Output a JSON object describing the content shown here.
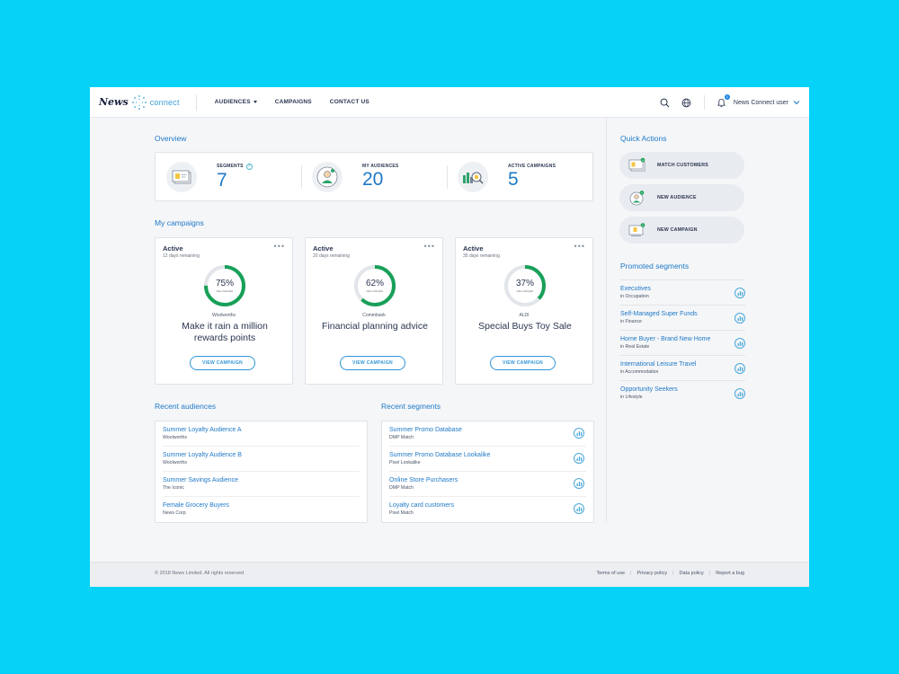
{
  "header": {
    "logo_news": "News",
    "logo_connect": "connect",
    "nav": [
      {
        "label": "AUDIENCES",
        "dropdown": true
      },
      {
        "label": "CAMPAIGNS",
        "dropdown": false
      },
      {
        "label": "CONTACT US",
        "dropdown": false
      }
    ],
    "notification_count": "1",
    "user_name": "News Connect user"
  },
  "overview": {
    "title": "Overview",
    "stats": [
      {
        "label": "SEGMENTS",
        "value": "7",
        "icon": "segments-icon"
      },
      {
        "label": "MY AUDIENCES",
        "value": "20",
        "icon": "audience-icon"
      },
      {
        "label": "ACTIVE CAMPAIGNS",
        "value": "5",
        "icon": "campaign-chart-icon"
      }
    ]
  },
  "campaigns": {
    "title": "My campaigns",
    "items": [
      {
        "status": "Active",
        "days": "12 days remaining",
        "percent": 75,
        "percent_label": "75%",
        "sub": "DELIVERED",
        "brand": "Woolworths",
        "name": "Make it rain a million rewards points",
        "button": "VIEW CAMPAIGN"
      },
      {
        "status": "Active",
        "days": "20 days remaining",
        "percent": 62,
        "percent_label": "62%",
        "sub": "DELIVERED",
        "brand": "Commbank",
        "name": "Financial planning advice",
        "button": "VIEW CAMPAIGN"
      },
      {
        "status": "Active",
        "days": "35 days remaining",
        "percent": 37,
        "percent_label": "37%",
        "sub": "DELIVERED",
        "brand": "ALDI",
        "name": "Special Buys Toy Sale",
        "button": "VIEW CAMPAIGN"
      }
    ]
  },
  "recent_audiences": {
    "title": "Recent audiences",
    "items": [
      {
        "title": "Summer Loyalty Audience A",
        "sub": "Woolworths"
      },
      {
        "title": "Summer Loyalty Audience B",
        "sub": "Woolworths"
      },
      {
        "title": "Summer Savings Audience",
        "sub": "The Iconic"
      },
      {
        "title": "Female Grocery Buyers",
        "sub": "News Corp"
      }
    ]
  },
  "recent_segments": {
    "title": "Recent segments",
    "items": [
      {
        "title": "Summer Promo Database",
        "sub": "DMP Match"
      },
      {
        "title": "Summer Promo Database Lookalike",
        "sub": "Pixel Lookalike"
      },
      {
        "title": "Online Store Purchasers",
        "sub": "DMP Match"
      },
      {
        "title": "Loyalty card customers",
        "sub": "Pixel Match"
      }
    ]
  },
  "quick_actions": {
    "title": "Quick Actions",
    "items": [
      {
        "label": "MATCH CUSTOMERS"
      },
      {
        "label": "NEW AUDIENCE"
      },
      {
        "label": "NEW CAMPAIGN"
      }
    ]
  },
  "promoted_segments": {
    "title": "Promoted segments",
    "items": [
      {
        "title": "Executives",
        "sub": "in Occupation"
      },
      {
        "title": "Self-Managed Super Funds",
        "sub": "in Finance"
      },
      {
        "title": "Home Buyer - Brand New Home",
        "sub": "in Real Estate"
      },
      {
        "title": "International Leisure Travel",
        "sub": "in Accommodation"
      },
      {
        "title": "Opportunity Seekers",
        "sub": "in Lifestyle"
      }
    ]
  },
  "footer": {
    "copyright": "© 2018 News Limited. All rights reserved",
    "links": [
      "Terms of use",
      "Privacy policy",
      "Data policy",
      "Report a bug"
    ]
  },
  "colors": {
    "accent": "#1e79c7",
    "progress": "#18a058",
    "progress_track": "#e2e5e9",
    "background": "#06d2f7"
  }
}
